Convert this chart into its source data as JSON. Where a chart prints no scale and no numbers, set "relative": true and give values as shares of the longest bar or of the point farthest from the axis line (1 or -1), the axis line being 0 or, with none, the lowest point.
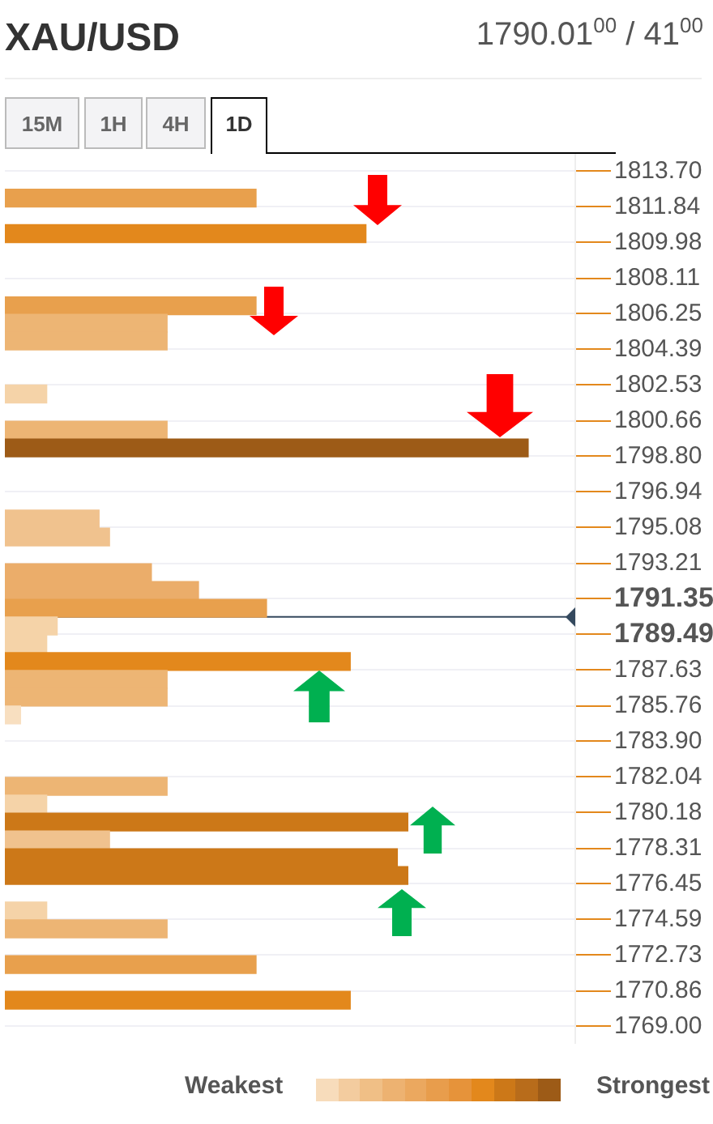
{
  "chart_data": {
    "type": "bar",
    "orientation": "horizontal",
    "relative": true,
    "title": "XAU/USD",
    "subtitle": "1790.01$^{00}$ / 41$^{00}$",
    "x": [
      1812.3,
      1810.44,
      1806.67,
      1805.76,
      1804.83,
      1802.06,
      1800.17,
      1799.24,
      1795.52,
      1794.58,
      1792.72,
      1791.79,
      1790.86,
      1789.93,
      1789.0,
      1788.07,
      1787.14,
      1786.21,
      1785.28,
      1781.55,
      1780.62,
      1779.68,
      1778.75,
      1777.82,
      1776.89,
      1775.03,
      1774.1,
      1772.23,
      1770.37
    ],
    "values": [
      0.48,
      0.69,
      0.48,
      0.31,
      0.31,
      0.08,
      0.31,
      1,
      0.18,
      0.2,
      0.28,
      0.37,
      0.5,
      0.1,
      0.08,
      0.66,
      0.31,
      0.31,
      0.03,
      0.31,
      0.08,
      0.77,
      0.2,
      0.75,
      0.77,
      0.08,
      0.31,
      0.48,
      0.66
    ],
    "colors": [
      "#e8a04d",
      "#e3881c",
      "#e8a04d",
      "#edb574",
      "#edb574",
      "#f5d3a8",
      "#edb574",
      "#9d5b17",
      "#f0c28e",
      "#f0c28e",
      "#ebad6a",
      "#ebad6a",
      "#e8a04d",
      "#f5d3a8",
      "#f5d3a8",
      "#e3881c",
      "#edb574",
      "#edb574",
      "#f8dfc0",
      "#edb574",
      "#f5d3a8",
      "#cc7818",
      "#f0c28e",
      "#cc7818",
      "#cc7818",
      "#f5d3a8",
      "#edb574",
      "#e8a04d",
      "#e3881c"
    ],
    "ylim": [
      1768.13,
      1814.61
    ],
    "yticks": [
      {
        "value": 1813.7,
        "label": "1813.70"
      },
      1811.84,
      1809.98,
      1808.11,
      1806.25,
      1804.39,
      1802.53,
      1800.66,
      {
        "value": 1798.8,
        "label": "1798.80"
      },
      1796.94,
      1795.08,
      1793.21,
      1791.35,
      1789.49,
      1787.63,
      1785.76,
      {
        "value": 1783.9,
        "label": "1783.90"
      },
      1782.04,
      1780.18,
      1778.31,
      1776.45,
      1774.59,
      1772.73,
      1770.86,
      {
        "value": 1769,
        "label": "1769.00"
      }
    ],
    "ref_lines": [
      {
        "axis": "y",
        "value": 1790.41,
        "color": "#34495e"
      }
    ],
    "grid": "y",
    "annotations": [
      "15M",
      "1H",
      "4H",
      "1D",
      "Weakest",
      "Strongest"
    ]
  }
}
